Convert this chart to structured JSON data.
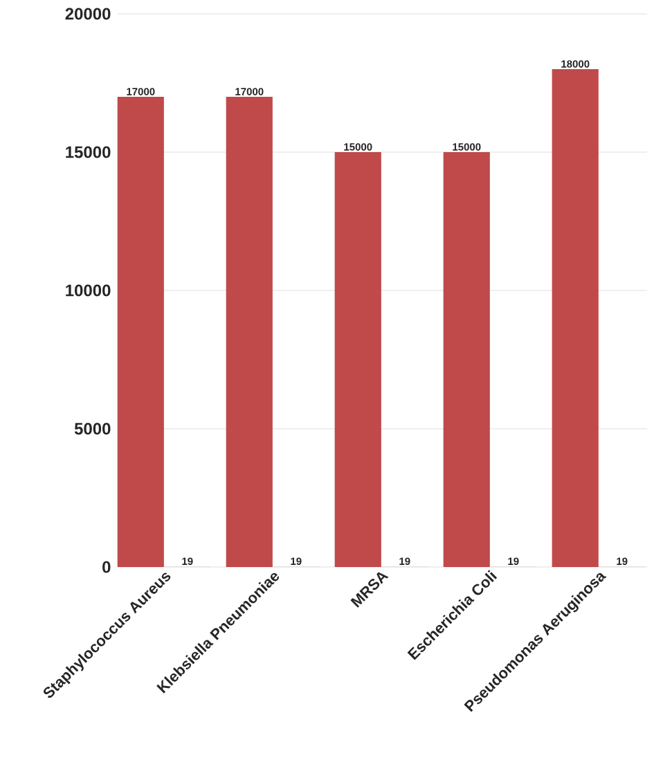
{
  "chart_data": {
    "type": "bar",
    "categories": [
      "Staphylococcus Aureus",
      "Klebsiella Pneumoniae",
      "MRSA",
      "Escherichia Coli",
      "Pseudomonas Aeruginosa"
    ],
    "series": [
      {
        "color": "#c0494a",
        "values": [
          17000,
          17000,
          15000,
          15000,
          18000
        ]
      },
      {
        "color": "#d9d9d9",
        "values": [
          19,
          19,
          19,
          19,
          19
        ]
      }
    ],
    "ylim": [
      0,
      20000
    ],
    "yticks": [
      0,
      5000,
      10000,
      15000,
      20000
    ],
    "grid": "y",
    "data_labels": true
  }
}
